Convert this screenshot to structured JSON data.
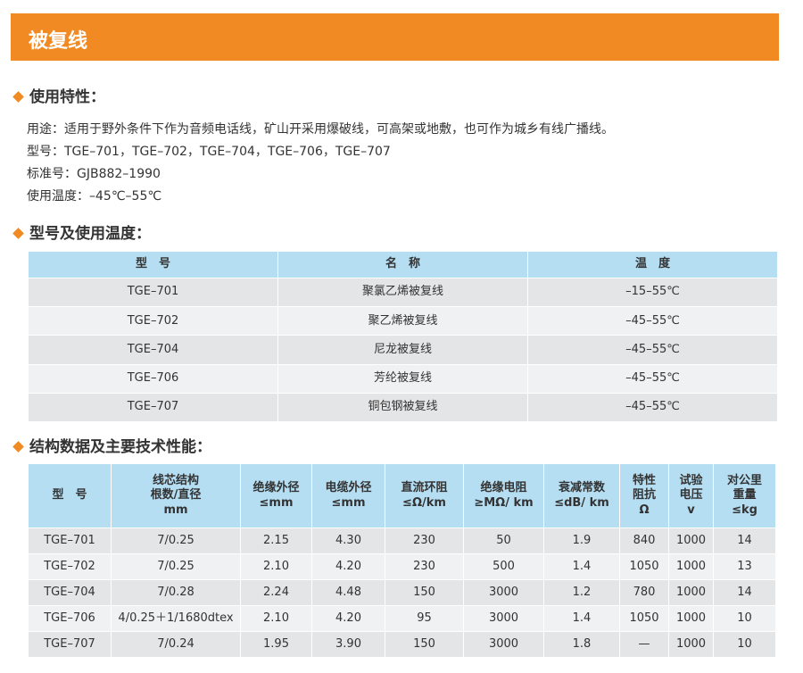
{
  "header": {
    "title": "被复线"
  },
  "sections": [
    {
      "heading": "使用特性：",
      "lines": [
        "用途：适用于野外条件下作为音频电话线，矿山开采用爆破线，可高架或地敷，也可作为城乡有线广播线。",
        "型号：TGE–701，TGE–702，TGE–704，TGE–706，TGE–707",
        "标准号：GJB882–1990",
        "使用温度：–45℃–55℃"
      ]
    },
    {
      "heading": "型号及使用温度：",
      "table": {
        "columns": [
          "型　号",
          "名　称",
          "温　度"
        ],
        "rows": [
          [
            "TGE–701",
            "聚氯乙烯被复线",
            "–15–55℃"
          ],
          [
            "TGE–702",
            "聚乙烯被复线",
            "–45–55℃"
          ],
          [
            "TGE–704",
            "尼龙被复线",
            "–45–55℃"
          ],
          [
            "TGE–706",
            "芳纶被复线",
            "–45–55℃"
          ],
          [
            "TGE–707",
            "铜包钢被复线",
            "–45–55℃"
          ]
        ]
      }
    },
    {
      "heading": "结构数据及主要技术性能：",
      "table": {
        "columns": [
          [
            "型　号"
          ],
          [
            "线芯结构",
            "根数/直径",
            "mm"
          ],
          [
            "绝缘外径",
            "≤mm"
          ],
          [
            "电缆外径",
            "≤mm"
          ],
          [
            "直流环阻",
            "≤Ω/km"
          ],
          [
            "绝缘电阻",
            "≥MΩ/ km"
          ],
          [
            "衰减常数",
            "≤dB/ km"
          ],
          [
            "特性",
            "阻抗",
            "Ω"
          ],
          [
            "试验",
            "电压",
            "v"
          ],
          [
            "对公里",
            "重量",
            "≤kg"
          ]
        ],
        "rows": [
          [
            "TGE–701",
            "7/0.25",
            "2.15",
            "4.30",
            "230",
            "50",
            "1.9",
            "840",
            "1000",
            "14"
          ],
          [
            "TGE–702",
            "7/0.25",
            "2.10",
            "4.20",
            "230",
            "500",
            "1.4",
            "1050",
            "1000",
            "13"
          ],
          [
            "TGE–704",
            "7/0.28",
            "2.24",
            "4.48",
            "150",
            "3000",
            "1.2",
            "780",
            "1000",
            "14"
          ],
          [
            "TGE–706",
            "4/0.25＋1/1680dtex",
            "2.10",
            "4.20",
            "95",
            "3000",
            "1.4",
            "1050",
            "1000",
            "10"
          ],
          [
            "TGE–707",
            "7/0.24",
            "1.95",
            "3.90",
            "150",
            "3000",
            "1.8",
            "—",
            "1000",
            "10"
          ]
        ]
      }
    }
  ]
}
